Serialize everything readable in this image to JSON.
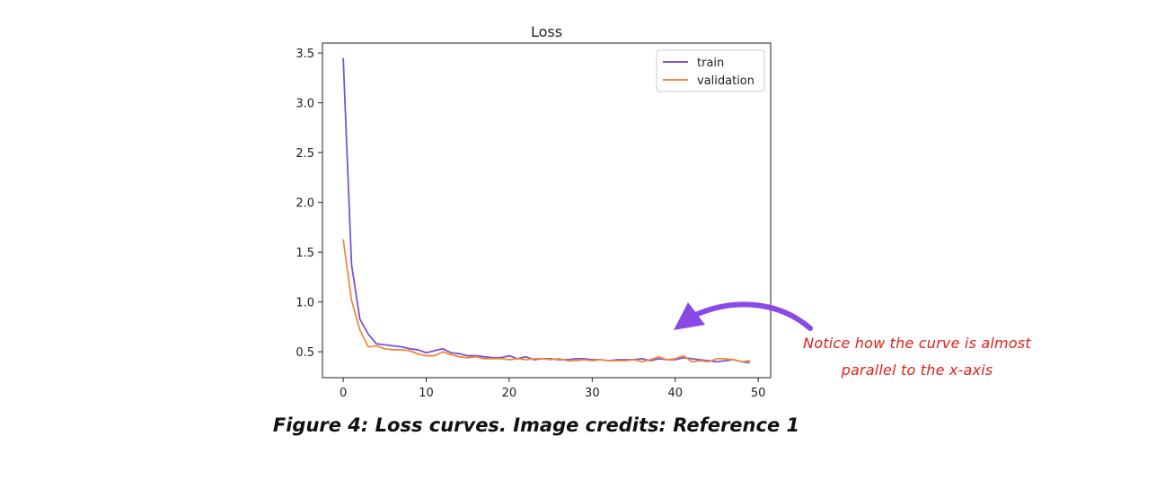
{
  "colors": {
    "train": "#7a52d6",
    "validation": "#f08a3c",
    "arrow": "#8a48e6",
    "annotation": "#e0201c"
  },
  "chart_data": {
    "type": "line",
    "title": "Loss",
    "xlabel": "",
    "ylabel": "",
    "xlim": [
      -2.5,
      51.5
    ],
    "ylim": [
      0.24,
      3.6
    ],
    "x_ticks": [
      0,
      10,
      20,
      30,
      40,
      50
    ],
    "y_ticks": [
      0.5,
      1.0,
      1.5,
      2.0,
      2.5,
      3.0,
      3.5
    ],
    "x_tick_labels": [
      "0",
      "10",
      "20",
      "30",
      "40",
      "50"
    ],
    "y_tick_labels": [
      "0.5",
      "1.0",
      "1.5",
      "2.0",
      "2.5",
      "3.0",
      "3.5"
    ],
    "legend_position": "top-right",
    "grid": false,
    "x": [
      0,
      1,
      2,
      3,
      4,
      5,
      6,
      7,
      8,
      9,
      10,
      11,
      12,
      13,
      14,
      15,
      16,
      17,
      18,
      19,
      20,
      21,
      22,
      23,
      24,
      25,
      26,
      27,
      28,
      29,
      30,
      31,
      32,
      33,
      34,
      35,
      36,
      37,
      38,
      39,
      40,
      41,
      42,
      43,
      44,
      45,
      46,
      47,
      48,
      49
    ],
    "series": [
      {
        "name": "train",
        "values": [
          3.45,
          1.38,
          0.83,
          0.68,
          0.58,
          0.57,
          0.56,
          0.55,
          0.53,
          0.52,
          0.49,
          0.51,
          0.53,
          0.49,
          0.48,
          0.46,
          0.46,
          0.45,
          0.44,
          0.44,
          0.46,
          0.43,
          0.45,
          0.42,
          0.43,
          0.43,
          0.42,
          0.42,
          0.43,
          0.43,
          0.42,
          0.42,
          0.41,
          0.42,
          0.42,
          0.42,
          0.43,
          0.41,
          0.43,
          0.42,
          0.42,
          0.44,
          0.43,
          0.42,
          0.41,
          0.4,
          0.41,
          0.42,
          0.4,
          0.39
        ]
      },
      {
        "name": "validation",
        "values": [
          1.63,
          1.02,
          0.72,
          0.55,
          0.56,
          0.53,
          0.52,
          0.52,
          0.51,
          0.48,
          0.46,
          0.46,
          0.5,
          0.47,
          0.45,
          0.44,
          0.45,
          0.43,
          0.43,
          0.43,
          0.42,
          0.43,
          0.42,
          0.43,
          0.43,
          0.42,
          0.43,
          0.41,
          0.41,
          0.42,
          0.41,
          0.42,
          0.41,
          0.41,
          0.41,
          0.42,
          0.4,
          0.42,
          0.45,
          0.42,
          0.43,
          0.46,
          0.4,
          0.41,
          0.4,
          0.43,
          0.43,
          0.42,
          0.4,
          0.41
        ]
      }
    ]
  },
  "annotation": {
    "line1": "Notice how the curve is almost",
    "line2": "parallel to the x-axis"
  },
  "caption": "Figure 4: Loss curves. Image credits: Reference 1"
}
